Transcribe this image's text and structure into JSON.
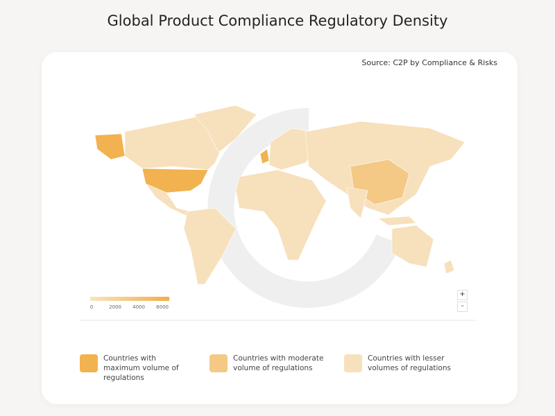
{
  "header": {
    "title": "Global Product Compliance Regulatory Density"
  },
  "card": {
    "source": "Source: C2P by Compliance & Risks"
  },
  "map": {
    "color_scale": {
      "lim": [
        0,
        6700
      ],
      "ticks": [
        0,
        2000,
        4000,
        6000
      ],
      "colors": [
        "#f8e3c2",
        "#f2ae4a"
      ]
    },
    "zoom": [
      "+",
      "-"
    ]
  },
  "legend": [
    {
      "label": "Countries with maximum volume of regulations",
      "color": "#f2b24f"
    },
    {
      "label": "Countries with moderate volume of regulations",
      "color": "#f4c985"
    },
    {
      "label": "Countries with lesser volumes of regulations",
      "color": "#f7e0bc"
    }
  ]
}
